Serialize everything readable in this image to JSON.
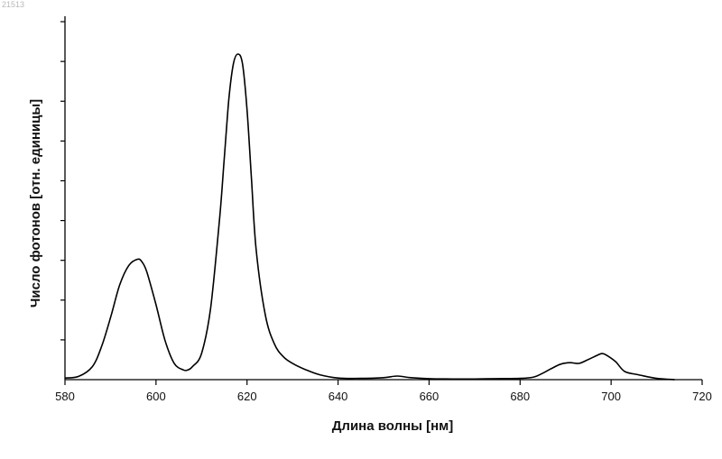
{
  "corner_label": "21513",
  "chart_data": {
    "type": "line",
    "title": "",
    "xlabel": "Длина волны [нм]",
    "ylabel": "Число фотонов [отн. единицы]",
    "xlim": [
      580,
      720
    ],
    "ylim": [
      0,
      1
    ],
    "x_ticks": [
      580,
      600,
      620,
      640,
      660,
      680,
      700,
      720
    ],
    "x_tick_labels": [
      "580",
      "600",
      "620",
      "640",
      "660",
      "680",
      "700",
      "720"
    ],
    "y_tick_count": 9,
    "y_tick_labels_shown": false,
    "grid": false,
    "series": [
      {
        "values_description": "emission spectrum, relative photon count",
        "x": [
          580,
          583,
          586,
          588,
          590,
          592,
          594,
          596,
          597,
          598,
          600,
          602,
          604,
          606,
          607,
          608,
          610,
          612,
          614,
          615,
          616,
          617,
          618,
          619,
          620,
          621,
          622,
          624,
          626,
          628,
          630,
          633,
          636,
          640,
          645,
          650,
          653,
          656,
          660,
          665,
          670,
          675,
          680,
          683,
          685,
          687,
          689,
          691,
          693,
          695,
          697,
          698,
          699,
          701,
          703,
          706,
          710,
          714
        ],
        "y": [
          0.005,
          0.01,
          0.04,
          0.1,
          0.19,
          0.29,
          0.35,
          0.37,
          0.36,
          0.33,
          0.23,
          0.12,
          0.05,
          0.03,
          0.03,
          0.04,
          0.08,
          0.22,
          0.5,
          0.68,
          0.86,
          0.97,
          1.0,
          0.97,
          0.83,
          0.61,
          0.4,
          0.2,
          0.11,
          0.07,
          0.05,
          0.03,
          0.015,
          0.005,
          0.004,
          0.006,
          0.011,
          0.006,
          0.003,
          0.002,
          0.002,
          0.003,
          0.004,
          0.008,
          0.02,
          0.035,
          0.048,
          0.052,
          0.05,
          0.062,
          0.075,
          0.08,
          0.075,
          0.055,
          0.025,
          0.015,
          0.004,
          0.0
        ]
      }
    ]
  }
}
